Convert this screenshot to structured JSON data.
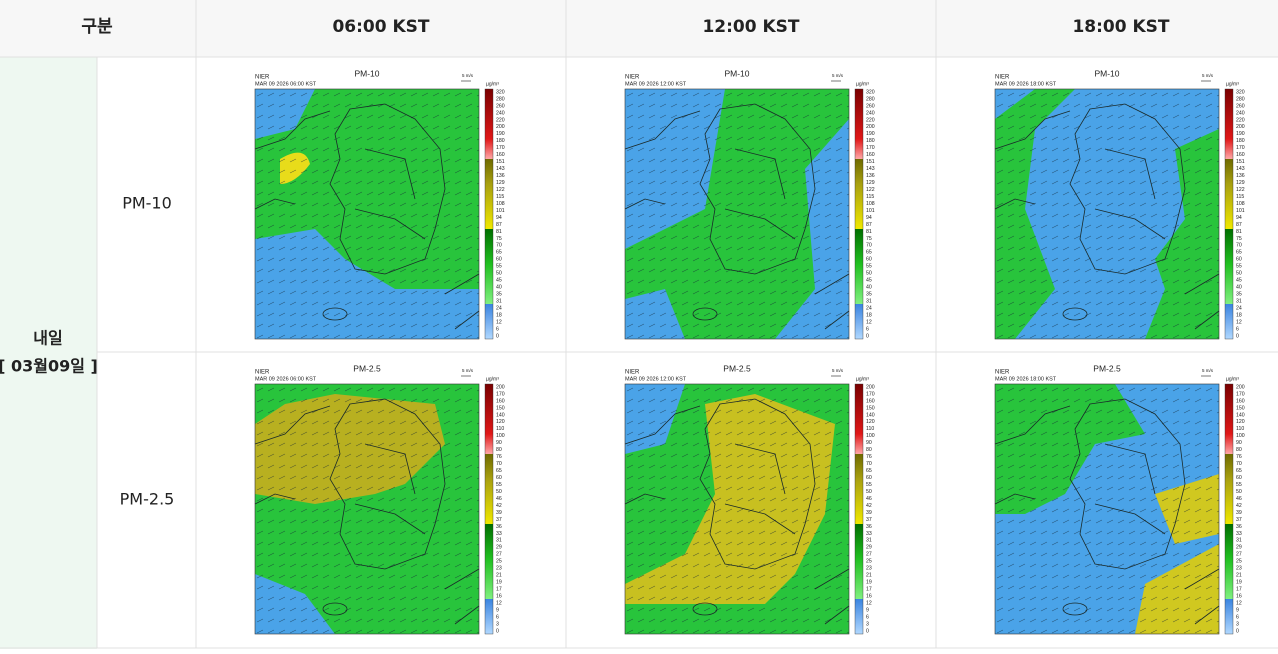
{
  "header": [
    "구분",
    "06:00 KST",
    "12:00 KST",
    "18:00 KST"
  ],
  "group": {
    "label": "내일",
    "date": "[ 03월09일 ]"
  },
  "wind_scale": "5 m/s",
  "unit": "µg/m³",
  "rows": [
    {
      "label": "PM-10",
      "colorbar": [
        320,
        280,
        260,
        240,
        220,
        200,
        190,
        180,
        170,
        160,
        151,
        143,
        136,
        129,
        122,
        115,
        108,
        101,
        94,
        87,
        81,
        75,
        70,
        65,
        60,
        55,
        50,
        45,
        40,
        35,
        31,
        24,
        18,
        12,
        6,
        0
      ],
      "maps": [
        {
          "title": "PM-10",
          "source": "NIER",
          "timestamp": "MAR 09 2026 06:00 KST"
        },
        {
          "title": "PM-10",
          "source": "NIER",
          "timestamp": "MAR 09 2026 12:00 KST"
        },
        {
          "title": "PM-10",
          "source": "NIER",
          "timestamp": "MAR 09 2026 18:00 KST"
        }
      ]
    },
    {
      "label": "PM-2.5",
      "colorbar": [
        200,
        170,
        160,
        150,
        140,
        120,
        110,
        100,
        90,
        80,
        76,
        70,
        65,
        60,
        55,
        50,
        46,
        42,
        39,
        37,
        36,
        33,
        31,
        29,
        27,
        25,
        23,
        21,
        19,
        17,
        16,
        12,
        9,
        6,
        3,
        0
      ],
      "maps": [
        {
          "title": "PM-2.5",
          "source": "NIER",
          "timestamp": "MAR 09 2026 06:00 KST"
        },
        {
          "title": "PM-2.5",
          "source": "NIER",
          "timestamp": "MAR 09 2026 12:00 KST"
        },
        {
          "title": "PM-2.5",
          "source": "NIER",
          "timestamp": "MAR 09 2026 18:00 KST"
        }
      ]
    }
  ]
}
